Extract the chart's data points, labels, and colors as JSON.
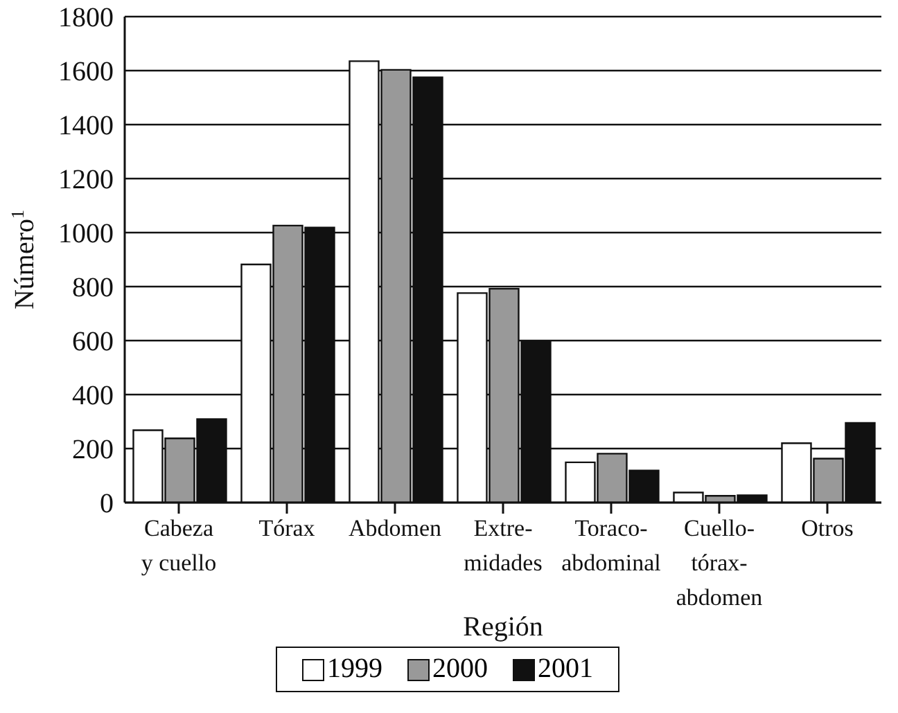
{
  "chart_data": {
    "type": "bar",
    "xlabel": "Región",
    "ylabel": "Número$^{1}$",
    "categories": [
      "Cabeza\ny cuello",
      "Tórax",
      "Abdomen",
      "Extre-\nmidades",
      "Toraco-\nabdominal",
      "Cuello-\ntórax-\nabdomen",
      "Otros"
    ],
    "series": [
      {
        "name": "1999",
        "color": "#ffffff",
        "values": [
          268,
          882,
          1635,
          776,
          149,
          37,
          220
        ]
      },
      {
        "name": "2000",
        "color": "#999999",
        "values": [
          238,
          1026,
          1603,
          792,
          181,
          25,
          163
        ]
      },
      {
        "name": "2001",
        "color": "#111111",
        "values": [
          309,
          1019,
          1575,
          598,
          119,
          27,
          295
        ]
      }
    ],
    "ylim": [
      0,
      1800
    ],
    "yticks": [
      0,
      200,
      400,
      600,
      800,
      1000,
      1200,
      1400,
      1600,
      1800
    ],
    "grid": "y",
    "legend": "bottom"
  }
}
